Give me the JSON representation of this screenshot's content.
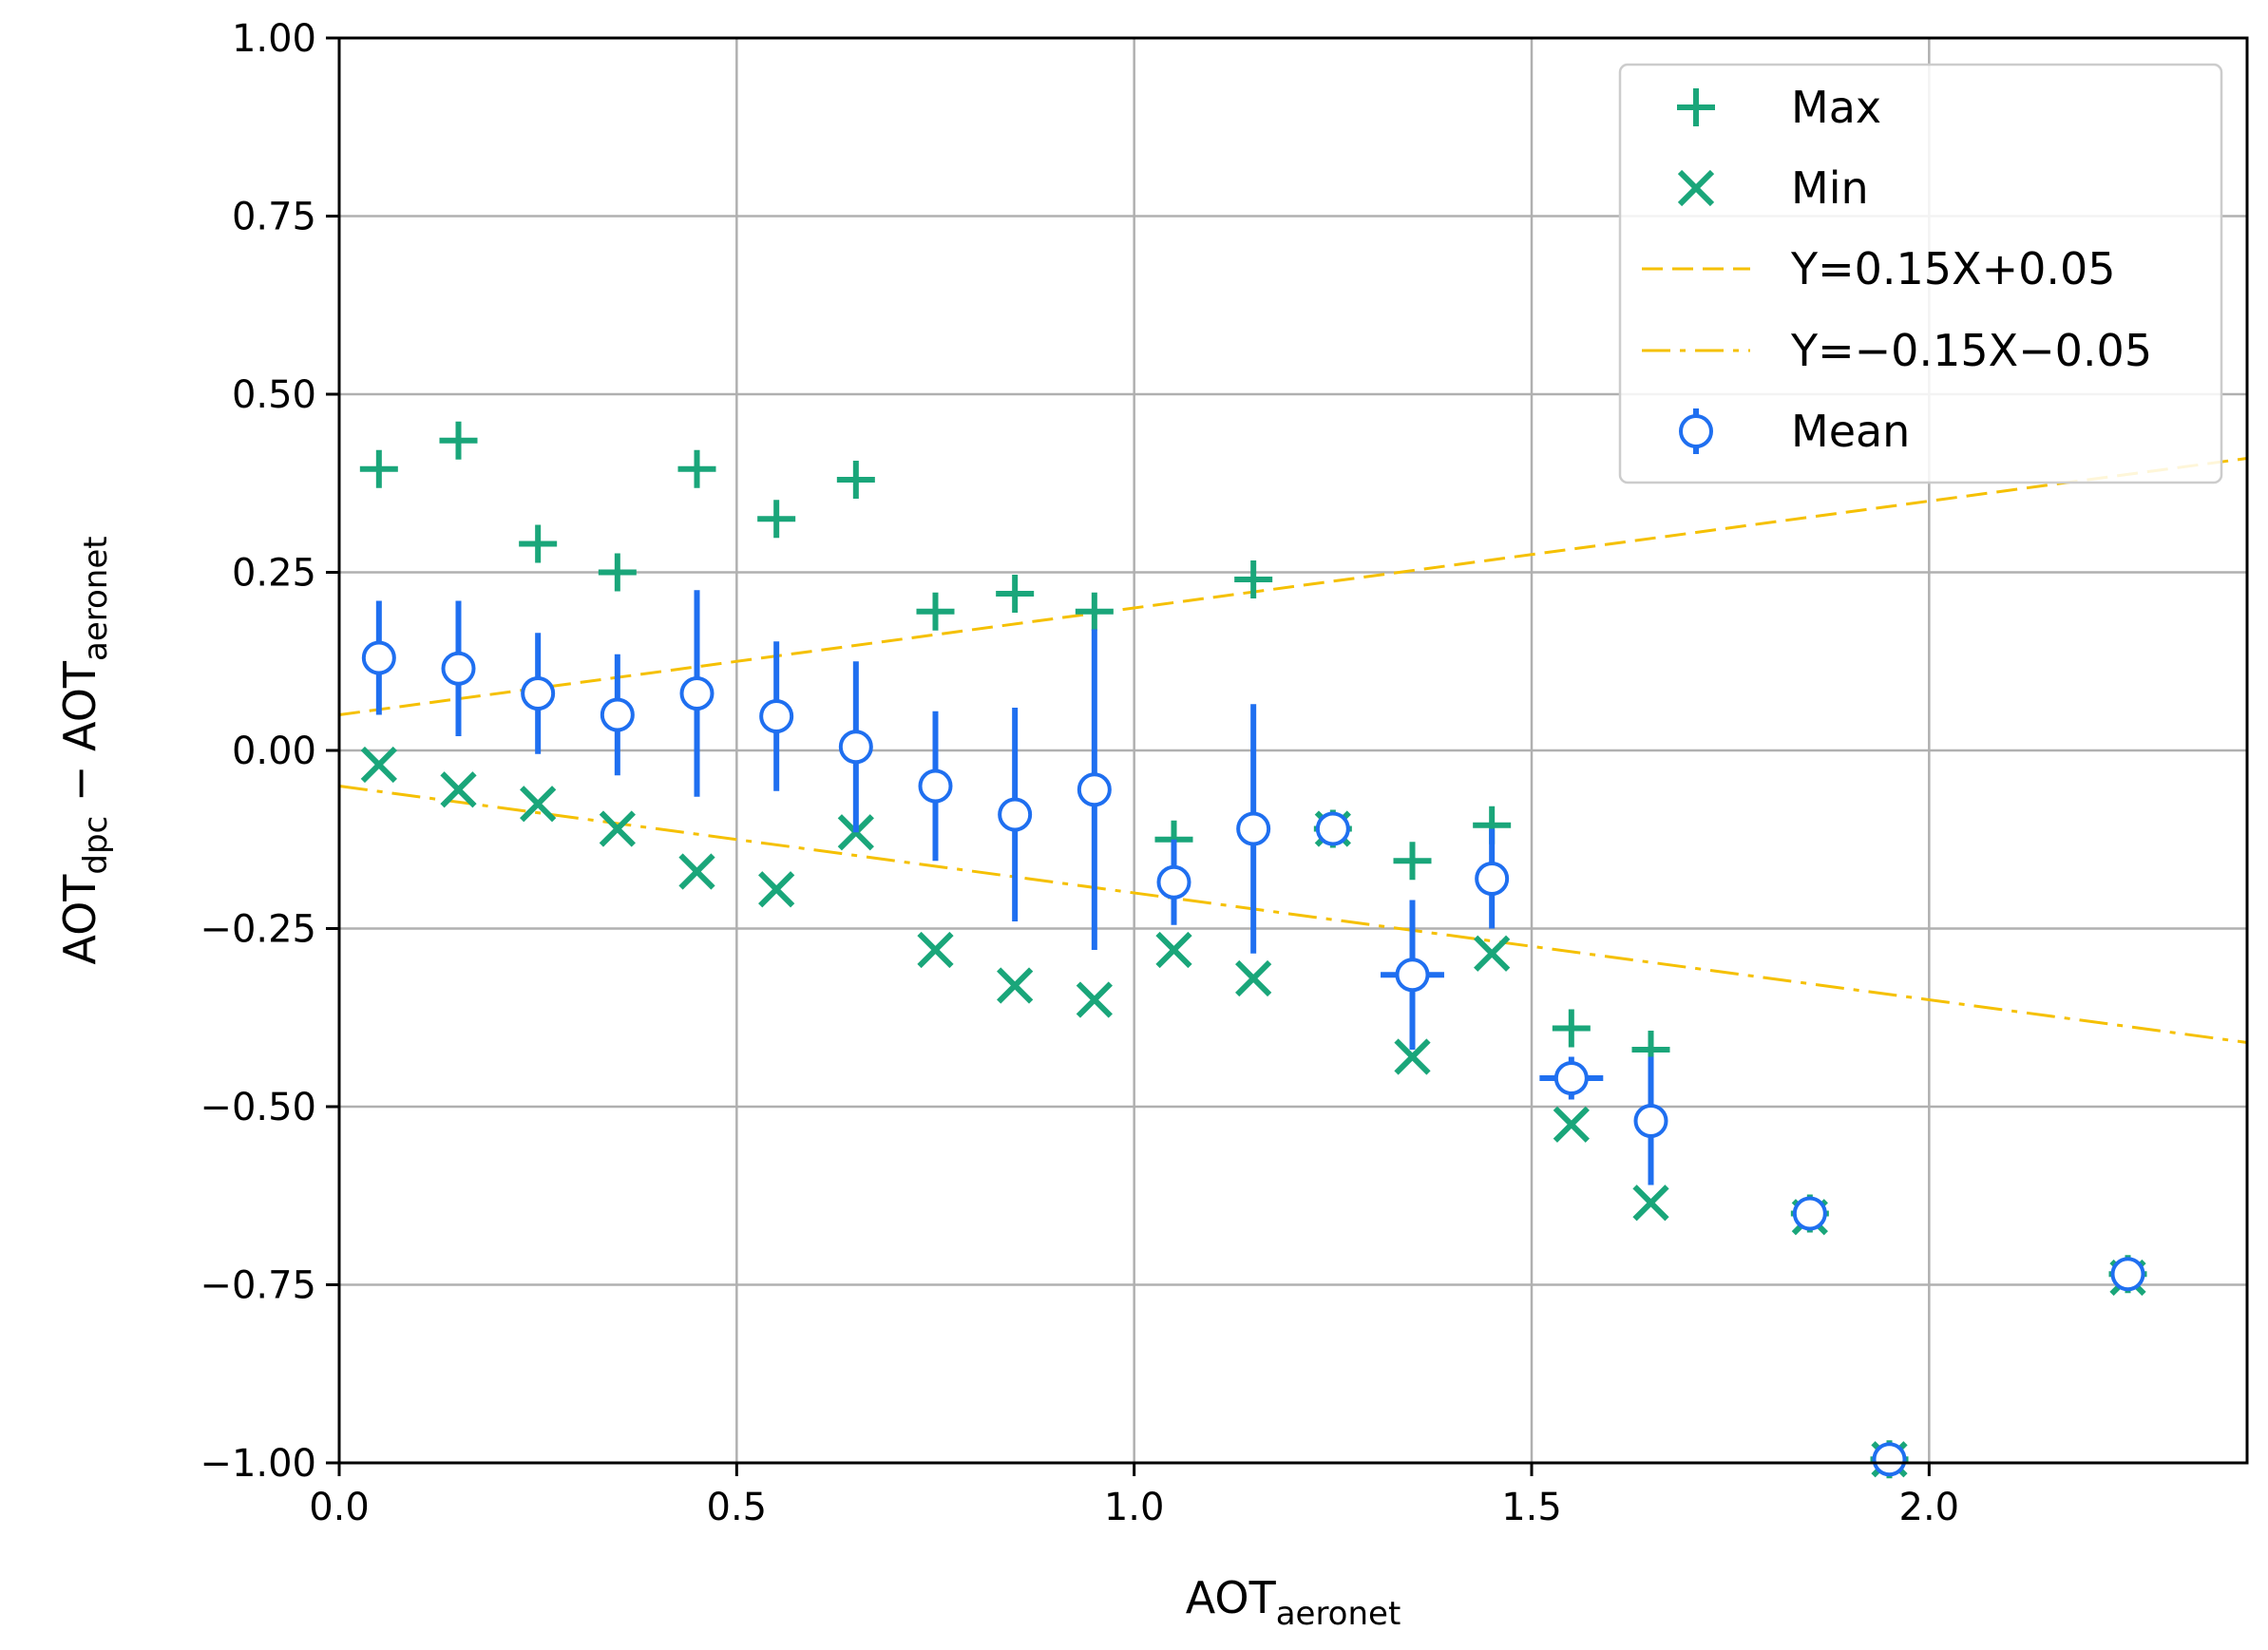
{
  "chart_data": {
    "type": "scatter",
    "title": "",
    "xlabel": {
      "base": "AOT",
      "sub": "aeronet"
    },
    "ylabel": {
      "base1": "AOT",
      "sub1": "dpc",
      "op": " − ",
      "base2": "AOT",
      "sub2": "aeronet"
    },
    "xlim": [
      0.0,
      2.4
    ],
    "ylim": [
      -1.0,
      1.0
    ],
    "grid": true,
    "legend_position": "top-right",
    "x_ticks": [
      0.0,
      0.5,
      1.0,
      1.5,
      2.0
    ],
    "x_tick_labels": [
      "0.0",
      "0.5",
      "1.0",
      "1.5",
      "2.0"
    ],
    "y_ticks": [
      1.0,
      0.75,
      0.5,
      0.25,
      0.0,
      -0.25,
      -0.5,
      -0.75,
      -1.0
    ],
    "y_tick_labels": [
      "1.00",
      "0.75",
      "0.50",
      "0.25",
      "0.00",
      "−0.25",
      "−0.50",
      "−0.75",
      "−1.00"
    ],
    "colors": {
      "max_min": "#1aa67a",
      "mean": "#1f6ff0",
      "guide": "#f5c000",
      "grid": "#b0b0b0"
    },
    "series": [
      {
        "name": "Max",
        "marker": "plus",
        "x": [
          0.05,
          0.15,
          0.25,
          0.35,
          0.45,
          0.55,
          0.65,
          0.75,
          0.85,
          0.95,
          1.05,
          1.15,
          1.25,
          1.35,
          1.45,
          1.55,
          1.65,
          1.85,
          1.95,
          2.25
        ],
        "y": [
          0.395,
          0.435,
          0.29,
          0.25,
          0.395,
          0.325,
          0.38,
          0.195,
          0.22,
          0.195,
          -0.125,
          0.24,
          -0.11,
          -0.155,
          -0.105,
          -0.39,
          -0.42,
          -0.65,
          -0.995,
          -0.735
        ]
      },
      {
        "name": "Min",
        "marker": "x",
        "x": [
          0.05,
          0.15,
          0.25,
          0.35,
          0.45,
          0.55,
          0.65,
          0.75,
          0.85,
          0.95,
          1.05,
          1.15,
          1.25,
          1.35,
          1.45,
          1.55,
          1.65,
          1.85,
          1.95,
          2.25
        ],
        "y": [
          -0.02,
          -0.055,
          -0.075,
          -0.11,
          -0.17,
          -0.195,
          -0.115,
          -0.28,
          -0.33,
          -0.35,
          -0.28,
          -0.32,
          -0.11,
          -0.43,
          -0.285,
          -0.525,
          -0.635,
          -0.655,
          -0.995,
          -0.74
        ]
      },
      {
        "name": "Y=0.15X+0.05",
        "type": "line",
        "style": "dashed",
        "slope": 0.15,
        "intercept": 0.05
      },
      {
        "name": "Y=−0.15X−0.05",
        "type": "line",
        "style": "dashdot",
        "slope": -0.15,
        "intercept": -0.05
      },
      {
        "name": "Mean",
        "marker": "circle-errorbar",
        "x": [
          0.05,
          0.15,
          0.25,
          0.35,
          0.45,
          0.55,
          0.65,
          0.75,
          0.85,
          0.95,
          1.05,
          1.15,
          1.25,
          1.35,
          1.45,
          1.55,
          1.65,
          1.85,
          1.95,
          2.25
        ],
        "y": [
          0.13,
          0.115,
          0.08,
          0.05,
          0.08,
          0.048,
          0.005,
          -0.05,
          -0.09,
          -0.055,
          -0.185,
          -0.11,
          -0.11,
          -0.315,
          -0.18,
          -0.46,
          -0.52,
          -0.65,
          -0.995,
          -0.735
        ],
        "yerr": [
          0.08,
          0.095,
          0.085,
          0.085,
          0.145,
          0.105,
          0.12,
          0.105,
          0.15,
          0.225,
          0.06,
          0.175,
          0.0,
          0.105,
          0.07,
          0.03,
          0.09,
          0.0,
          0.0,
          0.0
        ],
        "xerr": [
          0.0,
          0.0,
          0.0,
          0.0,
          0.0,
          0.0,
          0.0,
          0.0,
          0.0,
          0.0,
          0.0,
          0.0,
          0.0,
          0.04,
          0.0,
          0.04,
          0.0,
          0.0,
          0.0,
          0.0
        ]
      }
    ]
  }
}
